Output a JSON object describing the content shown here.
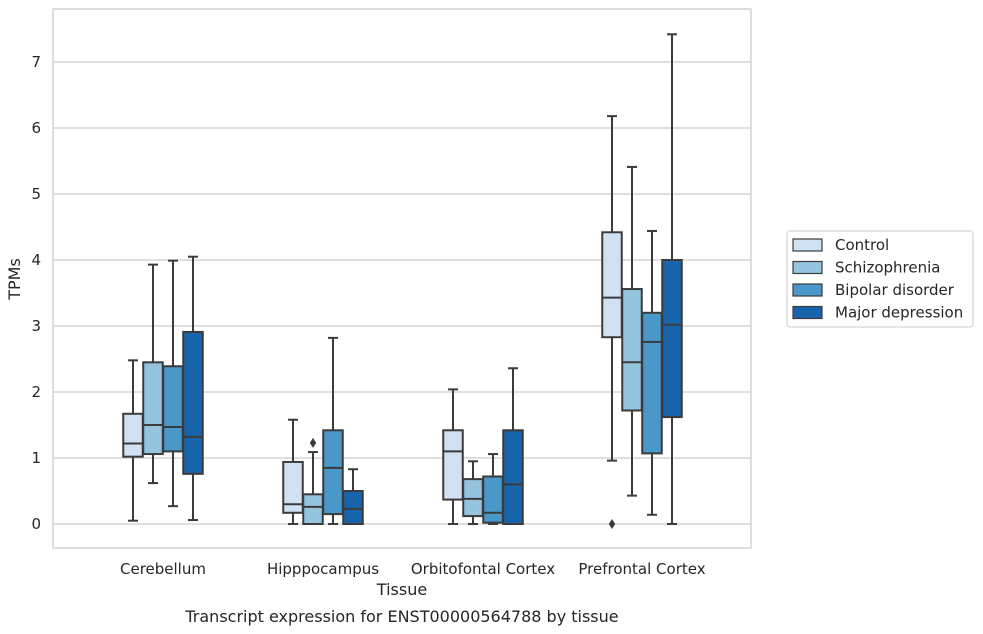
{
  "caption": "Transcript expression for ENST00000564788 by tissue",
  "chart_data": {
    "type": "box",
    "xlabel": "Tissue",
    "ylabel": "TPMs",
    "ylim": [
      -0.35,
      7.8
    ],
    "yticks": [
      0,
      1,
      2,
      3,
      4,
      5,
      6,
      7
    ],
    "grid": true,
    "legend_position": "right",
    "categories": [
      "Cerebellum",
      "Hipppocampus",
      "Orbitofontal Cortex",
      "Prefrontal Cortex"
    ],
    "series": [
      {
        "name": "Control",
        "color": "#d0e1f2",
        "boxes": [
          {
            "whisker_low": 0.05,
            "q1": 1.02,
            "median": 1.22,
            "q3": 1.67,
            "whisker_high": 2.48,
            "outliers": []
          },
          {
            "whisker_low": 0.0,
            "q1": 0.17,
            "median": 0.3,
            "q3": 0.94,
            "whisker_high": 1.58,
            "outliers": []
          },
          {
            "whisker_low": 0.0,
            "q1": 0.37,
            "median": 1.1,
            "q3": 1.42,
            "whisker_high": 2.04,
            "outliers": []
          },
          {
            "whisker_low": 0.96,
            "q1": 2.83,
            "median": 3.43,
            "q3": 4.42,
            "whisker_high": 6.18,
            "outliers": [
              0.0
            ]
          }
        ]
      },
      {
        "name": "Schizophrenia",
        "color": "#94c4df",
        "boxes": [
          {
            "whisker_low": 0.62,
            "q1": 1.06,
            "median": 1.5,
            "q3": 2.45,
            "whisker_high": 3.93,
            "outliers": []
          },
          {
            "whisker_low": 0.0,
            "q1": 0.0,
            "median": 0.26,
            "q3": 0.45,
            "whisker_high": 1.09,
            "outliers": [
              1.23
            ]
          },
          {
            "whisker_low": 0.0,
            "q1": 0.12,
            "median": 0.38,
            "q3": 0.68,
            "whisker_high": 0.95,
            "outliers": []
          },
          {
            "whisker_low": 0.43,
            "q1": 1.72,
            "median": 2.45,
            "q3": 3.56,
            "whisker_high": 5.41,
            "outliers": []
          }
        ]
      },
      {
        "name": "Bipolar disorder",
        "color": "#4a98c9",
        "boxes": [
          {
            "whisker_low": 0.27,
            "q1": 1.1,
            "median": 1.47,
            "q3": 2.39,
            "whisker_high": 3.99,
            "outliers": []
          },
          {
            "whisker_low": 0.0,
            "q1": 0.15,
            "median": 0.85,
            "q3": 1.42,
            "whisker_high": 2.82,
            "outliers": []
          },
          {
            "whisker_low": 0.0,
            "q1": 0.02,
            "median": 0.17,
            "q3": 0.72,
            "whisker_high": 1.06,
            "outliers": []
          },
          {
            "whisker_low": 0.14,
            "q1": 1.07,
            "median": 2.76,
            "q3": 3.2,
            "whisker_high": 4.44,
            "outliers": []
          }
        ]
      },
      {
        "name": "Major depression",
        "color": "#1764ab",
        "boxes": [
          {
            "whisker_low": 0.06,
            "q1": 0.76,
            "median": 1.32,
            "q3": 2.91,
            "whisker_high": 4.05,
            "outliers": []
          },
          {
            "whisker_low": 0.0,
            "q1": 0.0,
            "median": 0.23,
            "q3": 0.5,
            "whisker_high": 0.83,
            "outliers": []
          },
          {
            "whisker_low": 0.0,
            "q1": 0.0,
            "median": 0.6,
            "q3": 1.42,
            "whisker_high": 2.36,
            "outliers": []
          },
          {
            "whisker_low": 0.0,
            "q1": 1.62,
            "median": 3.02,
            "q3": 4.0,
            "whisker_high": 7.42,
            "outliers": []
          }
        ]
      }
    ]
  }
}
